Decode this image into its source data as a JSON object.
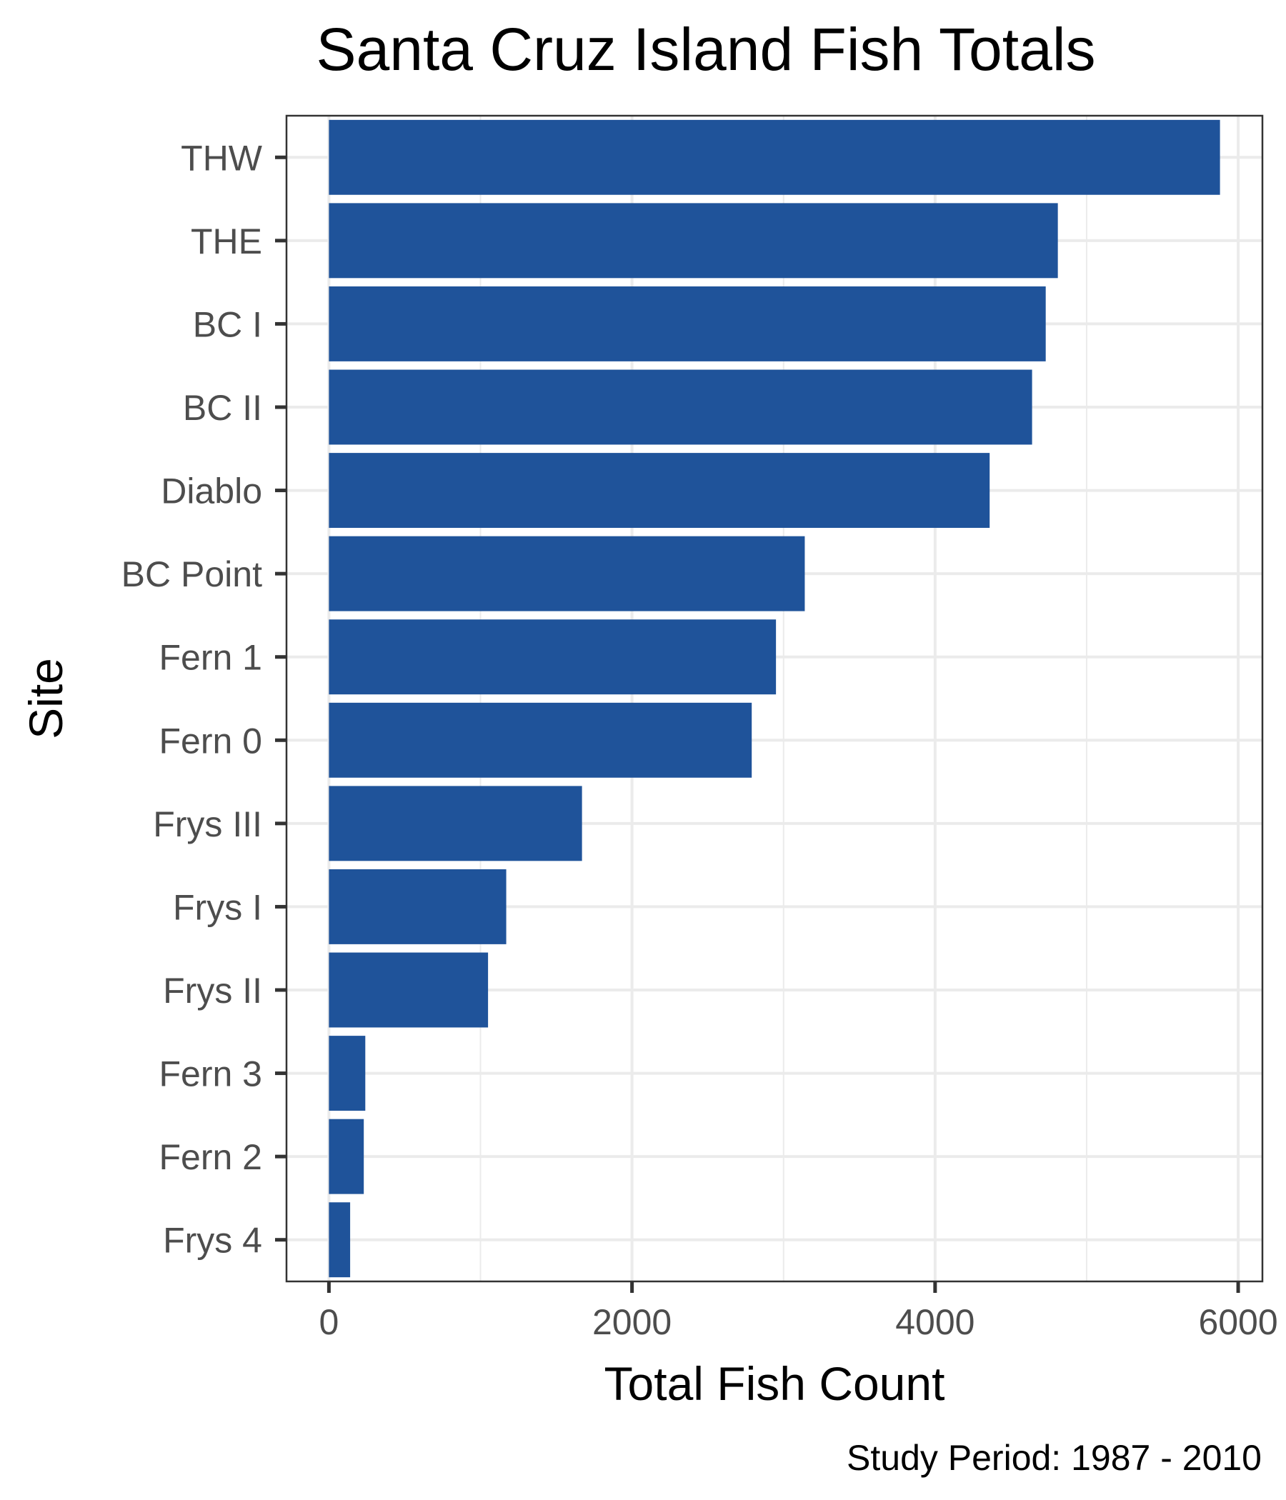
{
  "chart_data": {
    "type": "bar",
    "orientation": "horizontal",
    "title": "Santa Cruz Island Fish Totals",
    "xlabel": "Total Fish Count",
    "ylabel": "Site",
    "caption": "Study Period: 1987 - 2010",
    "categories": [
      "THW",
      "THE",
      "BC I",
      "BC II",
      "Diablo",
      "BC Point",
      "Fern 1",
      "Fern 0",
      "Frys III",
      "Frys I",
      "Frys II",
      "Fern 3",
      "Fern 2",
      "Frys 4"
    ],
    "values": [
      5880,
      4810,
      4730,
      4640,
      4360,
      3140,
      2950,
      2790,
      1670,
      1170,
      1050,
      240,
      230,
      140
    ],
    "xlim": [
      -280,
      6160
    ],
    "x_ticks": [
      0,
      2000,
      4000,
      6000
    ],
    "x_tick_labels": [
      "0",
      "2000",
      "4000",
      "6000"
    ],
    "bar_color": "#1f539a",
    "grid": true
  }
}
